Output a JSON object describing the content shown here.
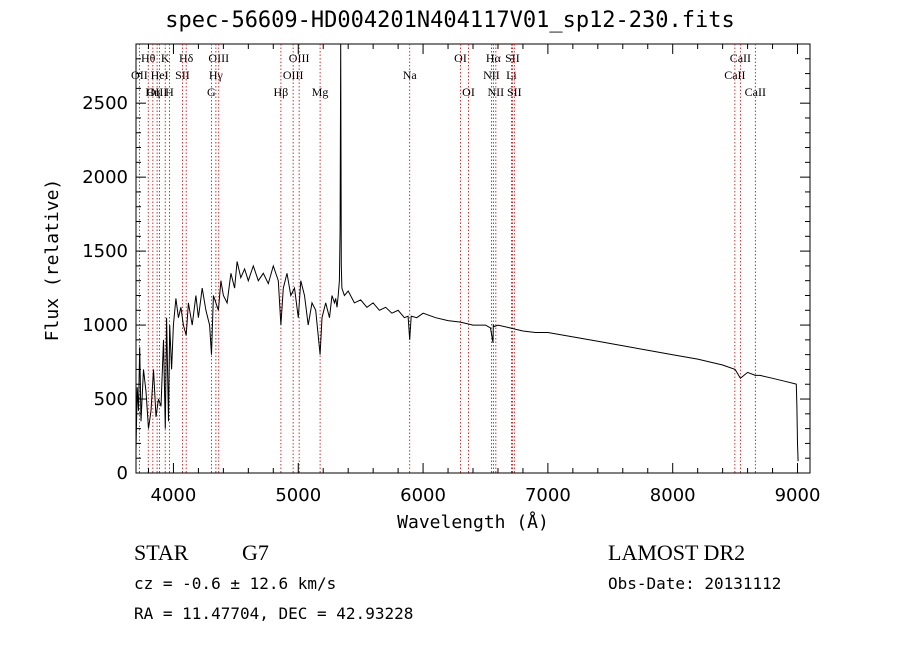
{
  "chart_data": {
    "type": "line",
    "title": "spec-56609-HD004201N404117V01_sp12-230.fits",
    "xlabel": "Wavelength (Å)",
    "ylabel": "Flux (relative)",
    "xlim": [
      3700,
      9100
    ],
    "ylim": [
      0,
      2900
    ],
    "xticks": [
      4000,
      5000,
      6000,
      7000,
      8000,
      9000
    ],
    "yticks": [
      0,
      500,
      1000,
      1500,
      2000,
      2500
    ],
    "lines": [
      {
        "label": "Hθ",
        "wavelength": 3798,
        "row": 0
      },
      {
        "label": "K",
        "wavelength": 3934,
        "row": 0
      },
      {
        "label": "Hδ",
        "wavelength": 4102,
        "row": 0
      },
      {
        "label": "OIII",
        "wavelength": 4363,
        "row": 0
      },
      {
        "label": "OIII",
        "wavelength": 5007,
        "row": 0
      },
      {
        "label": "OI",
        "wavelength": 6300,
        "row": 0
      },
      {
        "label": "Hα",
        "wavelength": 6563,
        "row": 0
      },
      {
        "label": "SII",
        "wavelength": 6716,
        "row": 0
      },
      {
        "label": "CaII",
        "wavelength": 8542,
        "row": 0
      },
      {
        "label": "OII",
        "wavelength": 3727,
        "row": 1
      },
      {
        "label": "HeI",
        "wavelength": 3889,
        "row": 1
      },
      {
        "label": "SII",
        "wavelength": 4072,
        "row": 1
      },
      {
        "label": "Hγ",
        "wavelength": 4340,
        "row": 1
      },
      {
        "label": "OIII",
        "wavelength": 4959,
        "row": 1
      },
      {
        "label": "Na",
        "wavelength": 5893,
        "row": 1
      },
      {
        "label": "NII",
        "wavelength": 6548,
        "row": 1
      },
      {
        "label": "Li",
        "wavelength": 6708,
        "row": 1
      },
      {
        "label": "CaII",
        "wavelength": 8498,
        "row": 1
      },
      {
        "label": "OIII",
        "wavelength": 3869,
        "row": 2
      },
      {
        "label": "Hη",
        "wavelength": 3835,
        "row": 2
      },
      {
        "label": "H",
        "wavelength": 3968,
        "row": 2
      },
      {
        "label": "G",
        "wavelength": 4304,
        "row": 2
      },
      {
        "label": "Hβ",
        "wavelength": 4861,
        "row": 2
      },
      {
        "label": "Mg",
        "wavelength": 5175,
        "row": 2
      },
      {
        "label": "OI",
        "wavelength": 6364,
        "row": 2
      },
      {
        "label": "NII",
        "wavelength": 6583,
        "row": 2
      },
      {
        "label": "SII",
        "wavelength": 6731,
        "row": 2
      },
      {
        "label": "CaII",
        "wavelength": 8662,
        "row": 2
      }
    ],
    "series": [
      {
        "name": "flux",
        "x": [
          3700,
          3710,
          3720,
          3730,
          3740,
          3760,
          3780,
          3800,
          3820,
          3840,
          3860,
          3880,
          3900,
          3920,
          3935,
          3945,
          3960,
          3970,
          3985,
          4000,
          4020,
          4040,
          4060,
          4080,
          4102,
          4120,
          4150,
          4180,
          4200,
          4230,
          4260,
          4290,
          4305,
          4320,
          4340,
          4360,
          4380,
          4400,
          4430,
          4460,
          4490,
          4510,
          4540,
          4570,
          4600,
          4640,
          4680,
          4720,
          4760,
          4800,
          4840,
          4861,
          4880,
          4910,
          4940,
          4970,
          5000,
          5020,
          5050,
          5080,
          5110,
          5140,
          5175,
          5190,
          5220,
          5250,
          5270,
          5290,
          5300,
          5310,
          5320,
          5330,
          5335,
          5340,
          5345,
          5350,
          5370,
          5400,
          5450,
          5500,
          5550,
          5600,
          5650,
          5700,
          5750,
          5800,
          5850,
          5880,
          5893,
          5905,
          5950,
          6000,
          6100,
          6200,
          6300,
          6400,
          6500,
          6540,
          6560,
          6563,
          6570,
          6600,
          6700,
          6800,
          6900,
          7000,
          7200,
          7400,
          7600,
          7800,
          8000,
          8200,
          8400,
          8500,
          8542,
          8600,
          8662,
          8700,
          8800,
          8900,
          8990,
          8995,
          9000,
          9005
        ],
        "y": [
          150,
          580,
          420,
          850,
          350,
          700,
          550,
          300,
          420,
          700,
          380,
          500,
          450,
          900,
          300,
          1050,
          350,
          1000,
          700,
          1000,
          1180,
          1050,
          1120,
          1000,
          930,
          1150,
          1000,
          1200,
          1050,
          1250,
          1100,
          1000,
          800,
          1200,
          1150,
          1100,
          1300,
          1200,
          1150,
          1350,
          1250,
          1430,
          1320,
          1380,
          1300,
          1400,
          1300,
          1350,
          1280,
          1400,
          1300,
          1000,
          1250,
          1350,
          1200,
          1250,
          1050,
          1300,
          1200,
          1000,
          1150,
          1100,
          800,
          1050,
          1150,
          1050,
          1200,
          1150,
          1180,
          1120,
          1200,
          1300,
          1650,
          2900,
          1400,
          1250,
          1200,
          1230,
          1150,
          1170,
          1120,
          1150,
          1100,
          1120,
          1080,
          1100,
          1050,
          1060,
          900,
          1060,
          1050,
          1080,
          1050,
          1030,
          1020,
          1000,
          1000,
          980,
          880,
          1000,
          990,
          1000,
          980,
          960,
          950,
          950,
          920,
          890,
          860,
          830,
          800,
          770,
          730,
          700,
          640,
          680,
          660,
          660,
          640,
          620,
          600,
          450,
          200,
          80
        ]
      }
    ]
  },
  "info": {
    "class_label": "STAR",
    "subclass": "G7",
    "survey": "LAMOST DR2",
    "redshift": "cz = -0.6 ± 12.6 km/s",
    "obs_date": "Obs-Date: 20131112",
    "coords": "RA =  11.47704, DEC =  42.93228"
  }
}
